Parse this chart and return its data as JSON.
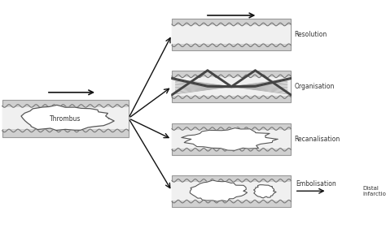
{
  "bg_color": "#ffffff",
  "vessel_fill": "#d0d0d0",
  "vessel_inner": "#e8e8e8",
  "lumen_fill": "#e8e8e8",
  "thrombus_fill": "#ffffff",
  "wall_color": "#888888",
  "wave_color": "#666666",
  "arrow_color": "#111111",
  "text_color": "#333333",
  "labels": {
    "thrombus": "Thrombus",
    "resolution": "Resolution",
    "organisation": "Organisation",
    "recanalisation": "Recanalisation",
    "embolisation": "Embolisation",
    "distal_infarction": "Distal\ninfarction"
  },
  "font_size": 5.5,
  "title_font_size": 7
}
